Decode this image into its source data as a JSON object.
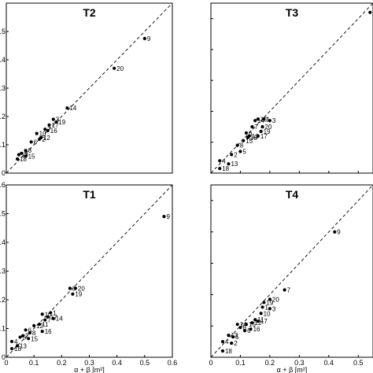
{
  "chart_data": [
    {
      "type": "scatter",
      "title": "T2",
      "xlabel": "",
      "xlim": [
        0,
        0.6
      ],
      "ylim": [
        0,
        0.6
      ],
      "xticks": [],
      "yticks": [
        "0",
        ".1",
        ".2",
        ".3",
        ".4",
        ".5"
      ],
      "points": [
        {
          "label": "18",
          "x": 0.04,
          "y": 0.05
        },
        {
          "label": "13",
          "x": 0.045,
          "y": 0.065
        },
        {
          "label": "5",
          "x": 0.055,
          "y": 0.07
        },
        {
          "label": "15",
          "x": 0.07,
          "y": 0.06
        },
        {
          "label": "8",
          "x": 0.07,
          "y": 0.08
        },
        {
          "label": "6",
          "x": 0.09,
          "y": 0.11
        },
        {
          "label": "10",
          "x": 0.11,
          "y": 0.14
        },
        {
          "label": "2",
          "x": 0.12,
          "y": 0.12
        },
        {
          "label": "12",
          "x": 0.125,
          "y": 0.125
        },
        {
          "label": "7",
          "x": 0.14,
          "y": 0.155
        },
        {
          "label": "16",
          "x": 0.15,
          "y": 0.15
        },
        {
          "label": "17",
          "x": 0.155,
          "y": 0.17
        },
        {
          "label": "3",
          "x": 0.17,
          "y": 0.19
        },
        {
          "label": "19",
          "x": 0.18,
          "y": 0.18
        },
        {
          "label": "14",
          "x": 0.22,
          "y": 0.23
        },
        {
          "label": "20",
          "x": 0.39,
          "y": 0.37
        },
        {
          "label": "9",
          "x": 0.5,
          "y": 0.475
        }
      ]
    },
    {
      "type": "scatter",
      "title": "T3",
      "xlabel": "",
      "xlim": [
        0,
        0.55
      ],
      "ylim": [
        0,
        0.55
      ],
      "xticks": [],
      "yticks": [],
      "points": [
        {
          "label": "18",
          "x": 0.03,
          "y": 0.015
        },
        {
          "label": "4",
          "x": 0.03,
          "y": 0.04
        },
        {
          "label": "13",
          "x": 0.06,
          "y": 0.03
        },
        {
          "label": "2",
          "x": 0.07,
          "y": 0.06
        },
        {
          "label": "8",
          "x": 0.09,
          "y": 0.09
        },
        {
          "label": "5",
          "x": 0.1,
          "y": 0.07
        },
        {
          "label": "15",
          "x": 0.11,
          "y": 0.105
        },
        {
          "label": "6",
          "x": 0.12,
          "y": 0.13
        },
        {
          "label": "16",
          "x": 0.125,
          "y": 0.115
        },
        {
          "label": "12",
          "x": 0.13,
          "y": 0.12
        },
        {
          "label": "7",
          "x": 0.14,
          "y": 0.15
        },
        {
          "label": "14",
          "x": 0.15,
          "y": 0.17
        },
        {
          "label": "10",
          "x": 0.16,
          "y": 0.175
        },
        {
          "label": "17",
          "x": 0.16,
          "y": 0.12
        },
        {
          "label": "19",
          "x": 0.17,
          "y": 0.135
        },
        {
          "label": "20",
          "x": 0.175,
          "y": 0.15
        },
        {
          "label": "1",
          "x": 0.18,
          "y": 0.175
        },
        {
          "label": "3",
          "x": 0.2,
          "y": 0.17
        },
        {
          "label": "9",
          "x": 0.54,
          "y": 0.52
        }
      ]
    },
    {
      "type": "scatter",
      "title": "T1",
      "xlabel": "α + β [m²]",
      "xlim": [
        0,
        0.6
      ],
      "ylim": [
        0,
        0.6
      ],
      "xticks": [
        "0",
        "0.1",
        "0.2",
        "0.3",
        "0.4",
        "0.5",
        "0.6"
      ],
      "yticks": [
        "0",
        ".1",
        ".2",
        ".3",
        ".4",
        ".5",
        ".6"
      ],
      "points": [
        {
          "label": "18",
          "x": 0.02,
          "y": 0.03
        },
        {
          "label": "4",
          "x": 0.02,
          "y": 0.055
        },
        {
          "label": "13",
          "x": 0.04,
          "y": 0.04
        },
        {
          "label": "5",
          "x": 0.05,
          "y": 0.07
        },
        {
          "label": "2",
          "x": 0.06,
          "y": 0.075
        },
        {
          "label": "6",
          "x": 0.07,
          "y": 0.095
        },
        {
          "label": "15",
          "x": 0.08,
          "y": 0.065
        },
        {
          "label": "8",
          "x": 0.085,
          "y": 0.085
        },
        {
          "label": "12",
          "x": 0.1,
          "y": 0.11
        },
        {
          "label": "11",
          "x": 0.12,
          "y": 0.115
        },
        {
          "label": "16",
          "x": 0.13,
          "y": 0.09
        },
        {
          "label": "10",
          "x": 0.13,
          "y": 0.15
        },
        {
          "label": "7",
          "x": 0.14,
          "y": 0.13
        },
        {
          "label": "17",
          "x": 0.15,
          "y": 0.14
        },
        {
          "label": "1",
          "x": 0.16,
          "y": 0.155
        },
        {
          "label": "14",
          "x": 0.17,
          "y": 0.135
        },
        {
          "label": "3",
          "x": 0.23,
          "y": 0.24
        },
        {
          "label": "19",
          "x": 0.24,
          "y": 0.22
        },
        {
          "label": "20",
          "x": 0.25,
          "y": 0.24
        },
        {
          "label": "9",
          "x": 0.57,
          "y": 0.49
        }
      ]
    },
    {
      "type": "scatter",
      "title": "T4",
      "xlabel": "α + β [m²]",
      "xlim": [
        0,
        0.55
      ],
      "ylim": [
        0,
        0.55
      ],
      "xticks": [
        "0",
        "0.1",
        "0.2",
        "0.3",
        "0.4",
        "0.5"
      ],
      "yticks": [],
      "points": [
        {
          "label": "18",
          "x": 0.04,
          "y": 0.02
        },
        {
          "label": "4",
          "x": 0.04,
          "y": 0.05
        },
        {
          "label": "2",
          "x": 0.07,
          "y": 0.045
        },
        {
          "label": "13",
          "x": 0.06,
          "y": 0.07
        },
        {
          "label": "5",
          "x": 0.075,
          "y": 0.065
        },
        {
          "label": "14",
          "x": 0.09,
          "y": 0.105
        },
        {
          "label": "8",
          "x": 0.1,
          "y": 0.095
        },
        {
          "label": "6",
          "x": 0.115,
          "y": 0.085
        },
        {
          "label": "15",
          "x": 0.12,
          "y": 0.105
        },
        {
          "label": "16",
          "x": 0.135,
          "y": 0.09
        },
        {
          "label": "12",
          "x": 0.14,
          "y": 0.11
        },
        {
          "label": "11",
          "x": 0.15,
          "y": 0.12
        },
        {
          "label": "17",
          "x": 0.16,
          "y": 0.115
        },
        {
          "label": "10",
          "x": 0.17,
          "y": 0.14
        },
        {
          "label": "1",
          "x": 0.175,
          "y": 0.16
        },
        {
          "label": "19",
          "x": 0.18,
          "y": 0.175
        },
        {
          "label": "3",
          "x": 0.2,
          "y": 0.155
        },
        {
          "label": "20",
          "x": 0.2,
          "y": 0.185
        },
        {
          "label": "7",
          "x": 0.25,
          "y": 0.215
        },
        {
          "label": "9",
          "x": 0.42,
          "y": 0.4
        }
      ]
    }
  ]
}
